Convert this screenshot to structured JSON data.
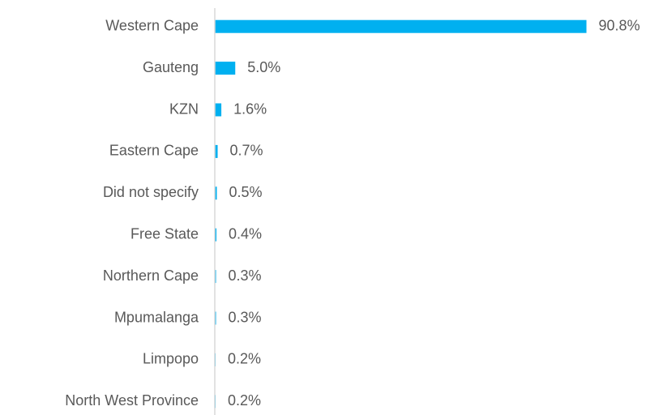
{
  "chart_data": {
    "type": "hbar",
    "categories": [
      "Western Cape",
      "Gauteng",
      "KZN",
      "Eastern Cape",
      "Did not specify",
      "Free State",
      "Northern Cape",
      "Mpumalanga",
      "Limpopo",
      "North West Province"
    ],
    "values": [
      90.8,
      5.0,
      1.6,
      0.7,
      0.5,
      0.4,
      0.3,
      0.3,
      0.2,
      0.2
    ],
    "value_labels": [
      "90.8%",
      "5.0%",
      "1.6%",
      "0.7%",
      "0.5%",
      "0.4%",
      "0.3%",
      "0.3%",
      "0.2%",
      "0.2%"
    ],
    "color": "#00b0f0",
    "xlim": [
      0,
      100
    ]
  }
}
